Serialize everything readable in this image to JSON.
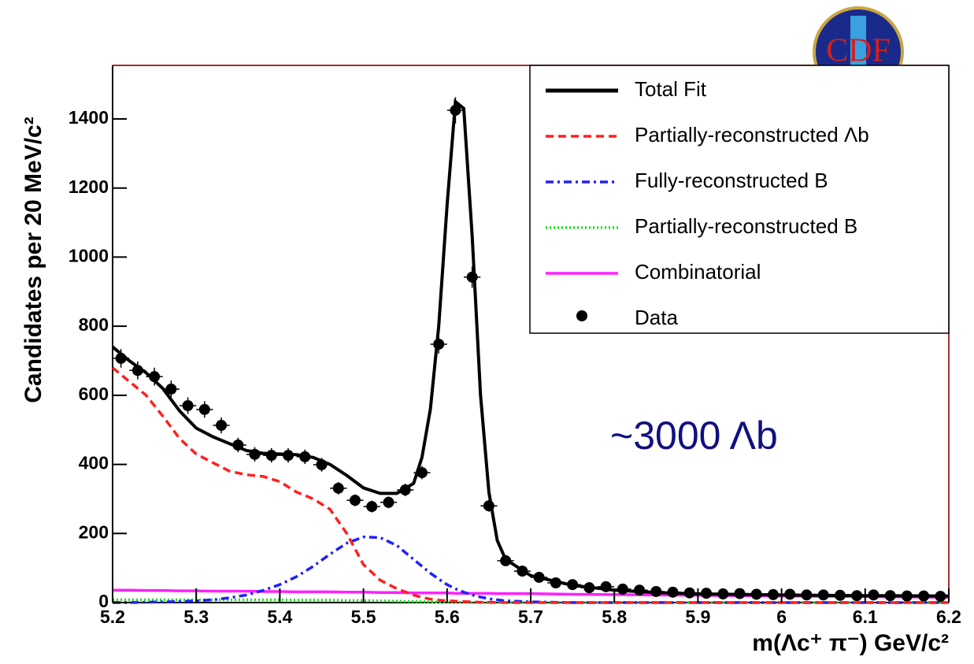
{
  "chart_data": {
    "type": "line",
    "xlabel": "m(Λc⁺ π⁻) GeV/c²",
    "ylabel": "Candidates per 20 MeV/c²",
    "annotation": "~3000 Λb",
    "logo": "CDF",
    "xlim": [
      5.2,
      6.2
    ],
    "ylim": [
      0,
      1555
    ],
    "xticks": [
      5.2,
      5.3,
      5.4,
      5.5,
      5.6,
      5.7,
      5.8,
      5.9,
      6,
      6.1,
      6.2
    ],
    "yticks": [
      0,
      200,
      400,
      600,
      800,
      1000,
      1200,
      1400
    ],
    "legend": "upper right",
    "curve_x": [
      5.2,
      5.22,
      5.24,
      5.26,
      5.28,
      5.3,
      5.32,
      5.34,
      5.36,
      5.38,
      5.4,
      5.42,
      5.44,
      5.46,
      5.48,
      5.5,
      5.52,
      5.54,
      5.56,
      5.57,
      5.58,
      5.59,
      5.6,
      5.61,
      5.62,
      5.63,
      5.64,
      5.65,
      5.66,
      5.67,
      5.7,
      5.75,
      5.8,
      5.85,
      5.9,
      6.0,
      6.1,
      6.2
    ],
    "series": [
      {
        "name": "Total Fit",
        "color": "#000000",
        "style": "solid",
        "values": [
          740,
          700,
          665,
          620,
          555,
          505,
          480,
          460,
          440,
          432,
          430,
          428,
          420,
          400,
          368,
          332,
          316,
          316,
          345,
          420,
          560,
          800,
          1150,
          1450,
          1430,
          1060,
          600,
          320,
          180,
          125,
          78,
          50,
          36,
          29,
          25,
          22,
          20,
          19
        ]
      },
      {
        "name": "Partially-reconstructed Λb",
        "color": "#ff2020",
        "style": "dashed",
        "values": [
          680,
          640,
          600,
          540,
          475,
          430,
          405,
          380,
          370,
          365,
          350,
          320,
          300,
          270,
          200,
          110,
          65,
          40,
          22,
          15,
          10,
          7,
          5,
          4,
          3,
          2,
          1,
          1,
          1,
          0,
          0,
          0,
          0,
          0,
          0,
          0,
          0,
          0
        ]
      },
      {
        "name": "Fully-reconstructed B",
        "color": "#2020ff",
        "style": "dashdot",
        "values": [
          0,
          0,
          1,
          2,
          3,
          5,
          8,
          14,
          22,
          35,
          52,
          75,
          105,
          140,
          172,
          190,
          188,
          165,
          125,
          105,
          85,
          68,
          52,
          40,
          30,
          22,
          16,
          11,
          8,
          5,
          2,
          0,
          0,
          0,
          0,
          0,
          0,
          0
        ]
      },
      {
        "name": "Partially-reconstructed B",
        "color": "#20dd20",
        "style": "dotted",
        "values": [
          8,
          8,
          8,
          8,
          8,
          8,
          8,
          8,
          8,
          8,
          8,
          7,
          7,
          7,
          6,
          6,
          5,
          4,
          3,
          3,
          2,
          2,
          1,
          1,
          1,
          0,
          0,
          0,
          0,
          0,
          0,
          0,
          0,
          0,
          0,
          0,
          0,
          0
        ]
      },
      {
        "name": "Combinatorial",
        "color": "#ff20ff",
        "style": "solid",
        "values": [
          36,
          36,
          35,
          35,
          34,
          34,
          33,
          33,
          33,
          32,
          32,
          31,
          31,
          31,
          30,
          30,
          29,
          29,
          28,
          28,
          28,
          28,
          28,
          27,
          27,
          27,
          27,
          27,
          26,
          26,
          26,
          24,
          23,
          22,
          21,
          19,
          17,
          15
        ]
      }
    ],
    "points": {
      "name": "Data",
      "color": "#000000",
      "x": [
        5.21,
        5.23,
        5.25,
        5.27,
        5.29,
        5.31,
        5.33,
        5.35,
        5.37,
        5.39,
        5.41,
        5.43,
        5.45,
        5.47,
        5.49,
        5.51,
        5.53,
        5.55,
        5.57,
        5.59,
        5.61,
        5.63,
        5.65,
        5.67,
        5.69,
        5.71,
        5.73,
        5.75,
        5.77,
        5.79,
        5.81,
        5.83,
        5.85,
        5.87,
        5.89,
        5.91,
        5.93,
        5.95,
        5.97,
        5.99,
        6.01,
        6.03,
        6.05,
        6.07,
        6.09,
        6.11,
        6.13,
        6.15,
        6.17,
        6.19
      ],
      "values": [
        707,
        672,
        654,
        618,
        570,
        559,
        513,
        456,
        429,
        426,
        426,
        422,
        399,
        331,
        296,
        278,
        290,
        326,
        376,
        748,
        1425,
        942,
        280,
        121,
        91,
        73,
        57,
        52,
        43,
        46,
        39,
        36,
        32,
        30,
        28,
        27,
        25,
        26,
        24,
        23,
        24,
        22,
        22,
        21,
        20,
        22,
        20,
        19,
        19,
        18
      ],
      "errors": [
        27,
        26,
        26,
        25,
        24,
        24,
        23,
        21,
        21,
        21,
        21,
        21,
        20,
        18,
        17,
        17,
        17,
        18,
        19,
        27,
        38,
        31,
        17,
        11,
        10,
        9,
        8,
        7,
        7,
        7,
        6,
        6,
        6,
        5,
        5,
        5,
        5,
        5,
        5,
        5,
        5,
        5,
        5,
        5,
        4,
        5,
        4,
        4,
        4,
        4
      ]
    }
  }
}
